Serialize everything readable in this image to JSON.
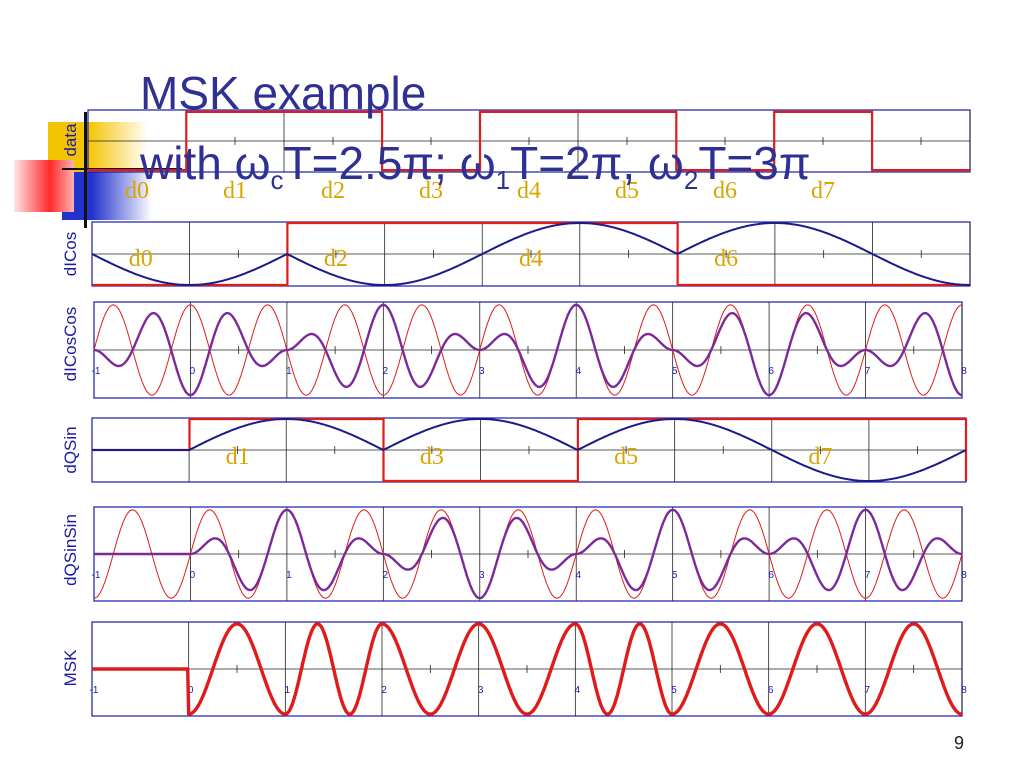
{
  "slide": {
    "title_line1": "MSK example",
    "title_line2_parts": [
      "with ω",
      "c",
      "T=2.5π; ω",
      "1",
      "T=2π, ω",
      "2",
      "T=3π"
    ],
    "page_number": "9"
  },
  "colors": {
    "title": "#2e3192",
    "frame": "#1a1aa6",
    "data_wave": "#e01b1b",
    "envelope": "#1a1a8c",
    "product": "#7b2a9a",
    "carrier": "#e01b1b",
    "bit_label": "#d9a400",
    "accent_yellow": "#f5c400",
    "accent_blue": "#2233cc"
  },
  "chart_data": {
    "type": "line",
    "x_ticks": [
      "-1",
      "0",
      "1",
      "2",
      "3",
      "4",
      "5",
      "6",
      "7",
      "8"
    ],
    "xlim": [
      -1,
      8
    ],
    "wcT": 2.5,
    "bits": [
      -1,
      1,
      1,
      -1,
      1,
      1,
      -1,
      1,
      -1
    ],
    "panels": [
      {
        "id": "data",
        "ylabel": "data",
        "labels": [
          "d0",
          "d1",
          "d2",
          "d3",
          "d4",
          "d5",
          "d6",
          "d7"
        ]
      },
      {
        "id": "dicos",
        "ylabel": "dICos",
        "labels": [
          "d0",
          "d2",
          "d4",
          "d6"
        ]
      },
      {
        "id": "dicoscos",
        "ylabel": "dICosCos"
      },
      {
        "id": "dqsin",
        "ylabel": "dQSin",
        "labels": [
          "d1",
          "d3",
          "d5",
          "d7"
        ]
      },
      {
        "id": "dqsinsin",
        "ylabel": "dQSinSin"
      },
      {
        "id": "msk",
        "ylabel": "MSK"
      }
    ]
  }
}
